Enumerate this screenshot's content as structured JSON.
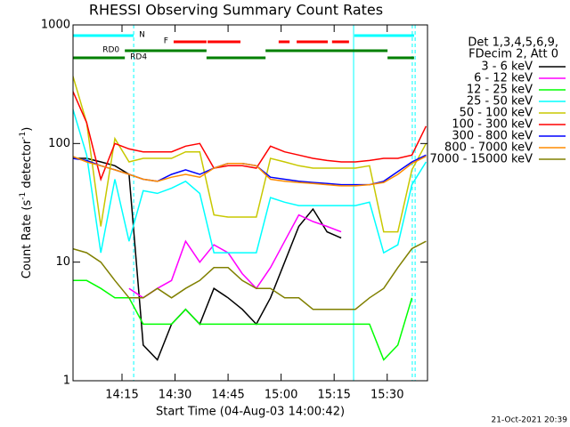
{
  "chart_data": {
    "type": "line",
    "title": "RHESSI Observing Summary Count Rates",
    "xlabel": "Start Time (04-Aug-03 14:00:42)",
    "ylabel": [
      "Count Rate (s",
      "-1",
      " detector",
      "-1",
      ")"
    ],
    "footer": "21-Oct-2021 20:39",
    "legend_title": [
      "Det 1,3,4,5,6,9,",
      "FDecim 2, Att 0"
    ],
    "log_y": true,
    "xlim": [
      1.15,
      101.4
    ],
    "ylim": [
      1,
      1000
    ],
    "xticks": [
      {
        "value": 15,
        "label": "14:15"
      },
      {
        "value": 30,
        "label": "14:30"
      },
      {
        "value": 45,
        "label": "14:45"
      },
      {
        "value": 60,
        "label": "15:00"
      },
      {
        "value": 75,
        "label": "15:15"
      },
      {
        "value": 90,
        "label": "15:30"
      }
    ],
    "yticks": [
      1,
      10,
      100,
      1000
    ],
    "x": [
      1,
      5,
      9,
      13,
      17,
      21,
      25,
      29,
      33,
      37,
      41,
      45,
      49,
      53,
      57,
      61,
      65,
      69,
      73,
      77,
      81,
      85,
      89,
      93,
      97,
      101
    ],
    "series": [
      {
        "name": "3 - 6 keV",
        "color": "#000000",
        "values": [
          75,
          75,
          70,
          65,
          55,
          2,
          1.5,
          3,
          4,
          3,
          6,
          5,
          4,
          3,
          5,
          10,
          20,
          28,
          18,
          16,
          null,
          null,
          null,
          null,
          null,
          null
        ]
      },
      {
        "name": "6 - 12 keV",
        "color": "#ff00ff",
        "values": [
          null,
          null,
          null,
          null,
          6,
          5,
          6,
          7,
          15,
          10,
          14,
          12,
          8,
          6,
          9,
          15,
          25,
          22,
          20,
          18,
          null,
          null,
          null,
          null,
          null,
          null
        ]
      },
      {
        "name": "12 - 25 keV",
        "color": "#00ff00",
        "values": [
          7,
          7,
          6,
          5,
          5,
          3,
          3,
          3,
          4,
          3,
          3,
          3,
          3,
          3,
          3,
          3,
          3,
          3,
          3,
          3,
          3,
          3,
          1.5,
          2,
          5,
          null
        ]
      },
      {
        "name": "25 - 50 keV",
        "color": "#00ffff",
        "values": [
          200,
          80,
          12,
          50,
          15,
          40,
          38,
          42,
          48,
          38,
          12,
          12,
          12,
          12,
          35,
          32,
          30,
          30,
          30,
          30,
          30,
          32,
          12,
          14,
          45,
          70
        ]
      },
      {
        "name": "50 - 100 keV",
        "color": "#c8c800",
        "values": [
          380,
          150,
          20,
          110,
          70,
          75,
          75,
          75,
          85,
          85,
          25,
          24,
          24,
          24,
          75,
          70,
          65,
          62,
          62,
          62,
          62,
          65,
          18,
          18,
          60,
          100
        ]
      },
      {
        "name": "100 - 300 keV",
        "color": "#ff0000",
        "values": [
          280,
          150,
          50,
          100,
          90,
          85,
          85,
          85,
          95,
          100,
          62,
          65,
          65,
          62,
          95,
          85,
          80,
          75,
          72,
          70,
          70,
          72,
          75,
          75,
          80,
          140
        ]
      },
      {
        "name": "300 - 800 keV",
        "color": "#0000ff",
        "values": [
          75,
          72,
          65,
          60,
          55,
          50,
          48,
          55,
          60,
          55,
          62,
          68,
          68,
          65,
          52,
          50,
          48,
          47,
          46,
          45,
          45,
          45,
          48,
          58,
          70,
          80
        ]
      },
      {
        "name": "800 - 7000 keV",
        "color": "#ff8c00",
        "values": [
          78,
          70,
          65,
          60,
          55,
          50,
          48,
          52,
          55,
          52,
          62,
          68,
          68,
          65,
          50,
          48,
          47,
          46,
          45,
          44,
          44,
          45,
          47,
          55,
          68,
          78
        ]
      },
      {
        "name": "7000 - 15000 keV",
        "color": "#808000",
        "values": [
          13,
          12,
          10,
          7,
          5,
          5,
          6,
          5,
          6,
          7,
          9,
          9,
          7,
          6,
          6,
          5,
          5,
          4,
          4,
          4,
          4,
          5,
          6,
          9,
          13,
          15
        ]
      }
    ],
    "state_bars": [
      {
        "label": "N",
        "color": "#00ffff",
        "segments": [
          [
            1.15,
            18.3
          ],
          [
            80.7,
            97.6
          ]
        ]
      },
      {
        "label": "F",
        "color": "#ff0000",
        "segments": [
          [
            29.6,
            38.9
          ],
          [
            39.2,
            48.5
          ],
          [
            59.3,
            62.4
          ],
          [
            64.4,
            73.2
          ],
          [
            74.4,
            79.2
          ]
        ]
      },
      {
        "label": "RD0",
        "color": "#008000",
        "segments": [
          [
            15.8,
            38.9
          ],
          [
            55.6,
            90.1
          ]
        ]
      },
      {
        "label": "RD4",
        "color": "#008000",
        "segments": [
          [
            1.2,
            15.8
          ],
          [
            38.9,
            55.6
          ],
          [
            90.1,
            97.6
          ]
        ]
      }
    ],
    "vlines": [
      {
        "x": 18.3,
        "dash": true
      },
      {
        "x": 80.5,
        "dash": false
      },
      {
        "x": 97.1,
        "dash": true
      },
      {
        "x": 97.9,
        "dash": true
      }
    ],
    "vline_color": "#00ffff"
  }
}
